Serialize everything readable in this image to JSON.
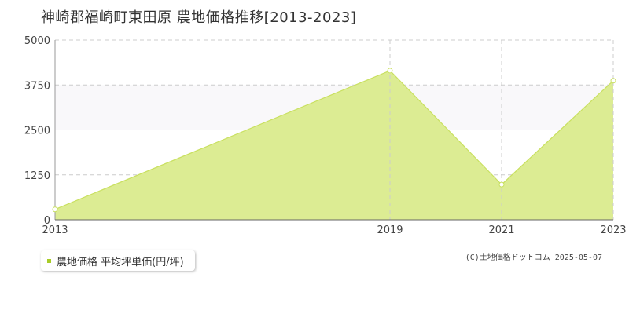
{
  "title": "神崎郡福崎町東田原 農地価格推移[2013-2023]",
  "legend": {
    "label": "農地価格 平均坪単価(円/坪)"
  },
  "copyright": "(C)土地価格ドットコム 2025-05-07",
  "colors": {
    "fill": "#dcec93",
    "stroke": "#c9e060",
    "band": "#f9f8fa",
    "grid": "#cccccc",
    "swatch": "#a8cc28"
  },
  "chart_data": {
    "type": "area",
    "title": "神崎郡福崎町東田原 農地価格推移[2013-2023]",
    "x": [
      "2013",
      "2019",
      "2021",
      "2023"
    ],
    "series": [
      {
        "name": "農地価格 平均坪単価(円/坪)",
        "values": [
          290,
          4150,
          980,
          3870
        ]
      }
    ],
    "ylim": [
      0,
      5000
    ],
    "yticks": [
      "0",
      "1250",
      "2500",
      "3750",
      "5000"
    ],
    "xticks": [
      "2013",
      "2019",
      "2021",
      "2023"
    ],
    "grid": true,
    "legend_position": "bottom-left"
  }
}
